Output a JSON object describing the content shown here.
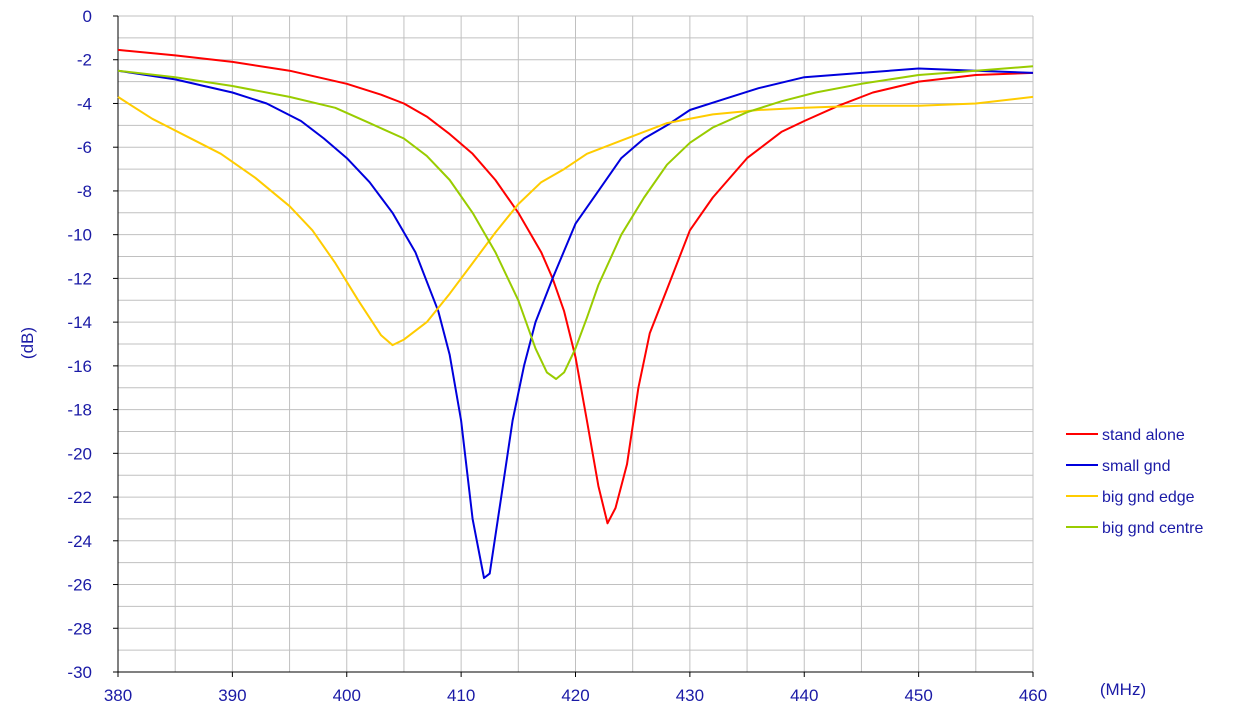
{
  "colors": {
    "text": "#1a1aa6",
    "grid": "#c0c0c0",
    "axis": "#000000"
  },
  "chart_data": {
    "type": "line",
    "title": "",
    "xlabel": "(MHz)",
    "ylabel": "(dB)",
    "xlim": [
      380,
      460
    ],
    "ylim": [
      -30,
      0
    ],
    "x_ticks": [
      380,
      390,
      400,
      410,
      420,
      430,
      440,
      450,
      460
    ],
    "y_ticks": [
      0,
      -2,
      -4,
      -6,
      -8,
      -10,
      -12,
      -14,
      -16,
      -18,
      -20,
      -22,
      -24,
      -26,
      -28,
      -30
    ],
    "x_minor_step": 5,
    "y_minor_step": 1,
    "grid": true,
    "legend_position": "right",
    "series": [
      {
        "name": "stand alone",
        "color": "#ff0000",
        "points": [
          [
            380,
            -1.55
          ],
          [
            385,
            -1.8
          ],
          [
            390,
            -2.1
          ],
          [
            395,
            -2.5
          ],
          [
            400,
            -3.1
          ],
          [
            403,
            -3.6
          ],
          [
            405,
            -4.0
          ],
          [
            407,
            -4.6
          ],
          [
            409,
            -5.4
          ],
          [
            411,
            -6.3
          ],
          [
            413,
            -7.5
          ],
          [
            415,
            -9.0
          ],
          [
            417,
            -10.8
          ],
          [
            418,
            -12.0
          ],
          [
            419,
            -13.5
          ],
          [
            420,
            -15.6
          ],
          [
            421,
            -18.5
          ],
          [
            422,
            -21.5
          ],
          [
            422.8,
            -23.2
          ],
          [
            423.5,
            -22.5
          ],
          [
            424.5,
            -20.5
          ],
          [
            425.5,
            -17.0
          ],
          [
            426.5,
            -14.5
          ],
          [
            428,
            -12.5
          ],
          [
            430,
            -9.8
          ],
          [
            432,
            -8.3
          ],
          [
            435,
            -6.5
          ],
          [
            438,
            -5.3
          ],
          [
            440,
            -4.8
          ],
          [
            443,
            -4.1
          ],
          [
            446,
            -3.5
          ],
          [
            450,
            -3.0
          ],
          [
            455,
            -2.7
          ],
          [
            460,
            -2.6
          ]
        ]
      },
      {
        "name": "small gnd",
        "color": "#0000dd",
        "points": [
          [
            380,
            -2.5
          ],
          [
            385,
            -2.9
          ],
          [
            390,
            -3.5
          ],
          [
            393,
            -4.0
          ],
          [
            396,
            -4.8
          ],
          [
            398,
            -5.6
          ],
          [
            400,
            -6.5
          ],
          [
            402,
            -7.6
          ],
          [
            404,
            -9.0
          ],
          [
            406,
            -10.8
          ],
          [
            408,
            -13.5
          ],
          [
            409,
            -15.5
          ],
          [
            410,
            -18.5
          ],
          [
            411,
            -23.0
          ],
          [
            412,
            -25.7
          ],
          [
            412.5,
            -25.5
          ],
          [
            413.5,
            -22.0
          ],
          [
            414.5,
            -18.5
          ],
          [
            415.5,
            -16.0
          ],
          [
            416.5,
            -14.0
          ],
          [
            418,
            -12.0
          ],
          [
            420,
            -9.5
          ],
          [
            422,
            -8.0
          ],
          [
            424,
            -6.5
          ],
          [
            426,
            -5.6
          ],
          [
            428,
            -5.0
          ],
          [
            430,
            -4.3
          ],
          [
            433,
            -3.8
          ],
          [
            436,
            -3.3
          ],
          [
            440,
            -2.8
          ],
          [
            445,
            -2.6
          ],
          [
            450,
            -2.4
          ],
          [
            455,
            -2.5
          ],
          [
            460,
            -2.6
          ]
        ]
      },
      {
        "name": "big gnd edge",
        "color": "#ffcc00",
        "points": [
          [
            380,
            -3.7
          ],
          [
            383,
            -4.7
          ],
          [
            386,
            -5.5
          ],
          [
            389,
            -6.3
          ],
          [
            392,
            -7.4
          ],
          [
            395,
            -8.7
          ],
          [
            397,
            -9.8
          ],
          [
            399,
            -11.3
          ],
          [
            401,
            -13.0
          ],
          [
            403,
            -14.6
          ],
          [
            404,
            -15.05
          ],
          [
            405,
            -14.8
          ],
          [
            407,
            -14.0
          ],
          [
            409,
            -12.7
          ],
          [
            411,
            -11.3
          ],
          [
            413,
            -9.9
          ],
          [
            415,
            -8.6
          ],
          [
            417,
            -7.6
          ],
          [
            419,
            -7.0
          ],
          [
            421,
            -6.3
          ],
          [
            424,
            -5.7
          ],
          [
            428,
            -4.9
          ],
          [
            432,
            -4.5
          ],
          [
            436,
            -4.3
          ],
          [
            440,
            -4.2
          ],
          [
            445,
            -4.1
          ],
          [
            450,
            -4.1
          ],
          [
            455,
            -4.0
          ],
          [
            460,
            -3.7
          ]
        ]
      },
      {
        "name": "big gnd centre",
        "color": "#99cc00",
        "points": [
          [
            380,
            -2.5
          ],
          [
            385,
            -2.8
          ],
          [
            390,
            -3.2
          ],
          [
            395,
            -3.7
          ],
          [
            399,
            -4.2
          ],
          [
            402,
            -4.9
          ],
          [
            405,
            -5.6
          ],
          [
            407,
            -6.4
          ],
          [
            409,
            -7.5
          ],
          [
            411,
            -9.0
          ],
          [
            413,
            -10.8
          ],
          [
            415,
            -13.0
          ],
          [
            416.5,
            -15.2
          ],
          [
            417.5,
            -16.3
          ],
          [
            418.3,
            -16.6
          ],
          [
            419,
            -16.3
          ],
          [
            420,
            -15.2
          ],
          [
            421,
            -13.8
          ],
          [
            422,
            -12.3
          ],
          [
            424,
            -10.0
          ],
          [
            426,
            -8.3
          ],
          [
            428,
            -6.8
          ],
          [
            430,
            -5.8
          ],
          [
            432,
            -5.1
          ],
          [
            435,
            -4.4
          ],
          [
            438,
            -3.9
          ],
          [
            441,
            -3.5
          ],
          [
            445,
            -3.1
          ],
          [
            450,
            -2.7
          ],
          [
            455,
            -2.5
          ],
          [
            460,
            -2.3
          ]
        ]
      }
    ]
  }
}
